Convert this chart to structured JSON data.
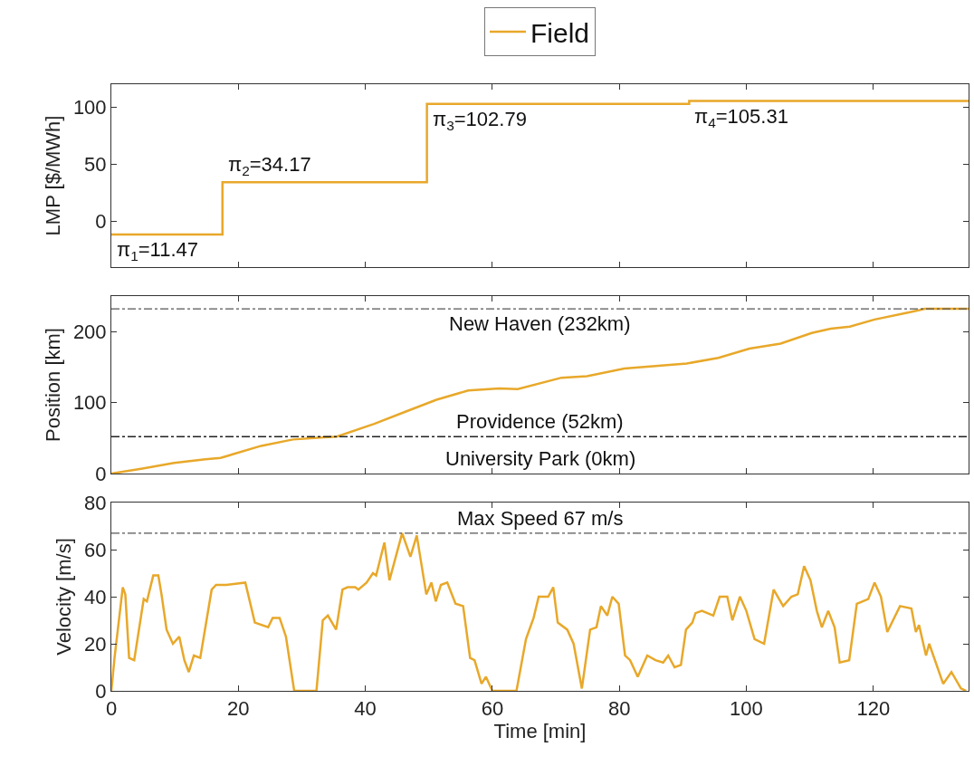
{
  "chart_data": [
    {
      "type": "step",
      "ylabel": "LMP [$/MWh]",
      "xlim": [
        0,
        135
      ],
      "xticks": [
        0,
        20,
        40,
        60,
        80,
        100,
        120
      ],
      "ylim": [
        -40,
        120
      ],
      "yticks": [
        0,
        50,
        100
      ],
      "tick_labels": "y",
      "legend": "top",
      "series": [
        {
          "name": "Field",
          "color": "#e8a82a",
          "x": [
            0,
            17.5,
            49.7,
            91,
            135
          ],
          "values": [
            -11.47,
            34.17,
            102.79,
            105.31,
            105.31
          ]
        }
      ],
      "annotations": [
        "π$_{1}$=11.47",
        "π$_{2}$=34.17",
        "π$_{3}$=102.79",
        "π$_{4}$=105.31"
      ]
    },
    {
      "type": "line",
      "ylabel": "Position [km]",
      "xlim": [
        0,
        135
      ],
      "xticks": [
        0,
        20,
        40,
        60,
        80,
        100,
        120
      ],
      "ylim": [
        0,
        250
      ],
      "yticks": [
        0,
        100,
        200
      ],
      "tick_labels": "y",
      "series": [
        {
          "color": "#e8a82a",
          "x": [
            0,
            4.9,
            9.9,
            14.8,
            17.2,
            23.6,
            28.6,
            33.5,
            35.5,
            41.4,
            46.3,
            51.2,
            56.2,
            61.1,
            64,
            70.9,
            74.9,
            80.8,
            90.6,
            95.6,
            100.5,
            105.4,
            110.3,
            113.3,
            116.3,
            120.2,
            125.1,
            128.1,
            135
          ],
          "values": [
            0,
            7,
            15,
            20,
            22,
            39,
            48,
            51,
            52,
            70,
            87,
            104,
            117,
            120,
            119,
            135,
            137,
            148,
            155,
            163,
            176,
            183,
            198,
            204,
            207,
            217,
            226,
            232,
            232
          ]
        }
      ],
      "ref_lines": [
        {
          "axis": "y",
          "value": 232,
          "label": "New Haven (232km)",
          "color": "#555555",
          "line_style": "dashdot"
        },
        {
          "axis": "y",
          "value": 52,
          "label": "Providence (52km)",
          "color": "#222222",
          "line_style": "dashdot"
        }
      ],
      "annotations": [
        "University Park (0km)"
      ]
    },
    {
      "type": "line",
      "xlabel": "Time [min]",
      "ylabel": "Velocity [m/s]",
      "xlim": [
        0,
        135
      ],
      "xticks": [
        0,
        20,
        40,
        60,
        80,
        100,
        120
      ],
      "ylim": [
        0,
        80
      ],
      "yticks": [
        0,
        20,
        40,
        60,
        80
      ],
      "series": [
        {
          "color": "#e8a82a",
          "x": [
            0,
            0.5,
            1.8,
            2.2,
            2.8,
            3.6,
            5.1,
            5.6,
            6.6,
            7.4,
            7.9,
            8.7,
            9.7,
            10.7,
            11.5,
            12.2,
            13,
            14,
            15.8,
            16.5,
            18.1,
            21.1,
            22.6,
            24.7,
            25.4,
            26.5,
            27.5,
            28.8,
            32.3,
            33.3,
            34.1,
            35.4,
            36.4,
            37.2,
            38.4,
            38.9,
            40.2,
            41.2,
            41.7,
            43,
            43.8,
            44.8,
            45.8,
            47.1,
            48.1,
            49.6,
            50.4,
            51.1,
            51.9,
            52.9,
            54.2,
            55.4,
            56.5,
            57.2,
            58.3,
            59,
            60,
            63.8,
            65.3,
            66.5,
            67.3,
            68.8,
            69.6,
            70.3,
            71.8,
            72.8,
            74.1,
            75.4,
            76.4,
            77.1,
            78.1,
            78.9,
            79.9,
            80.9,
            81.7,
            82.9,
            84.4,
            85.7,
            86.9,
            87.7,
            88.7,
            89.7,
            90.5,
            91.5,
            92,
            93,
            94.8,
            95.8,
            97,
            97.8,
            99,
            100,
            101.3,
            102.8,
            104.3,
            105.8,
            107.1,
            108.1,
            109.1,
            110.1,
            111.1,
            111.9,
            112.9,
            113.9,
            114.7,
            116.2,
            117.4,
            119.2,
            120.2,
            121.2,
            122.2,
            124.2,
            126,
            126.7,
            127.2,
            128.3,
            128.8,
            131,
            132.3,
            133.8,
            134.6
          ],
          "values": [
            0,
            14,
            44,
            41,
            14,
            13,
            39,
            38,
            49,
            49,
            41,
            26,
            20,
            23,
            13,
            8,
            15,
            14,
            43,
            45,
            45,
            46,
            29,
            27,
            31,
            31,
            23,
            0,
            0,
            30,
            32,
            26,
            43,
            44,
            44,
            43,
            46,
            50,
            49,
            63,
            47,
            57,
            67,
            57,
            66,
            41,
            46,
            38,
            45,
            46,
            37,
            36,
            14,
            13,
            3,
            6,
            0,
            0,
            22,
            31,
            40,
            40,
            44,
            29,
            26,
            20,
            1,
            26,
            27,
            36,
            32,
            40,
            37,
            15,
            13,
            6,
            15,
            13,
            12,
            15,
            10,
            11,
            26,
            29,
            33,
            34,
            32,
            40,
            40,
            30,
            40,
            34,
            22,
            20,
            43,
            36,
            40,
            41,
            53,
            47,
            34,
            27,
            34,
            27,
            12,
            13,
            37,
            39,
            46,
            40,
            25,
            36,
            35,
            25,
            28,
            15,
            20,
            3,
            8,
            1,
            0
          ]
        }
      ],
      "ref_lines": [
        {
          "axis": "y",
          "value": 67,
          "label": "Max Speed 67 m/s",
          "color": "#555555",
          "line_style": "dashdot"
        }
      ]
    }
  ]
}
